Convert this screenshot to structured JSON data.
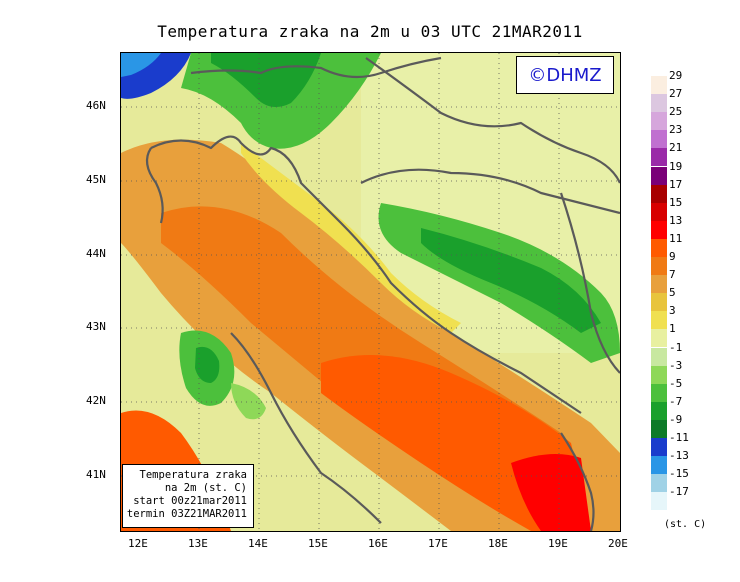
{
  "title": "Temperatura zraka na 2m u 03 UTC 21MAR2011",
  "copyright": "©DHMZ",
  "lat_labels": [
    "46N",
    "45N",
    "44N",
    "43N",
    "42N",
    "41N"
  ],
  "lon_labels": [
    "12E",
    "13E",
    "14E",
    "15E",
    "16E",
    "17E",
    "18E",
    "19E",
    "20E"
  ],
  "info": {
    "line1": "Temperatura zraka",
    "line2": "na 2m (st. C)",
    "line3": "start 00z21mar2011",
    "line4": "termin 03Z21MAR2011"
  },
  "legend": {
    "labels": [
      "29",
      "27",
      "25",
      "23",
      "21",
      "19",
      "17",
      "15",
      "13",
      "11",
      "9",
      "7",
      "5",
      "3",
      "1",
      "-1",
      "-3",
      "-5",
      "-7",
      "-9",
      "-11",
      "-13",
      "-15",
      "-17"
    ],
    "colors": [
      "#fbeee0",
      "#dcc7e0",
      "#d6a6dc",
      "#c070d0",
      "#9a2aa8",
      "#7a0078",
      "#a80000",
      "#d80000",
      "#ff0000",
      "#ff5a00",
      "#f07a14",
      "#e8a03c",
      "#e8c43c",
      "#f0e050",
      "#e8f0a0",
      "#c8e8a0",
      "#8ed858",
      "#4cc03c",
      "#1aa02c",
      "#0c7a28",
      "#1a3ccc",
      "#2a96e6",
      "#a0d2e6",
      "#e6f6fa"
    ],
    "unit": "(st. C)"
  }
}
